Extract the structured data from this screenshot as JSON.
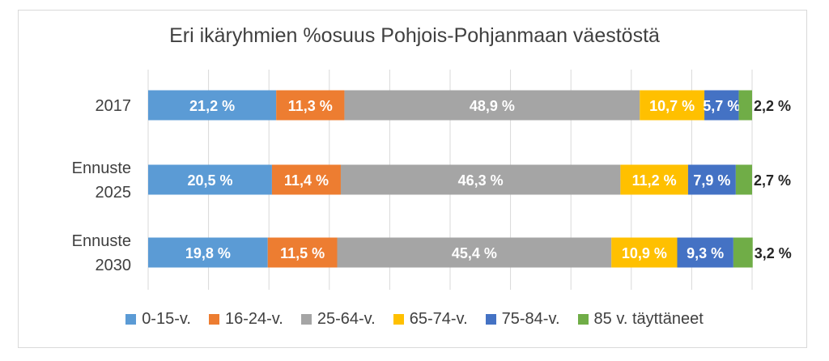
{
  "chart_data": {
    "type": "bar",
    "orientation": "horizontal",
    "stacked": true,
    "title": "Eri ikäryhmien %osuus Pohjois-Pohjanmaan väestöstä",
    "categories": [
      [
        "2017"
      ],
      [
        "Ennuste",
        "2025"
      ],
      [
        "Ennuste",
        "2030"
      ]
    ],
    "xlim": [
      0,
      100
    ],
    "grid": true,
    "legend_position": "bottom",
    "series": [
      {
        "name": "0-15-v.",
        "color": "#5b9bd5",
        "values": [
          21.2,
          20.5,
          19.8
        ],
        "labels": [
          "21,2 %",
          "20,5 %",
          "19,8 %"
        ]
      },
      {
        "name": "16-24-v.",
        "color": "#ed7d31",
        "values": [
          11.3,
          11.4,
          11.5
        ],
        "labels": [
          "11,3 %",
          "11,4 %",
          "11,5 %"
        ]
      },
      {
        "name": "25-64-v.",
        "color": "#a5a5a5",
        "values": [
          48.9,
          46.3,
          45.4
        ],
        "labels": [
          "48,9 %",
          "46,3 %",
          "45,4 %"
        ]
      },
      {
        "name": "65-74-v.",
        "color": "#ffc000",
        "values": [
          10.7,
          11.2,
          10.9
        ],
        "labels": [
          "10,7 %",
          "11,2 %",
          "10,9 %"
        ]
      },
      {
        "name": "75-84-v.",
        "color": "#4472c4",
        "values": [
          5.7,
          7.9,
          9.3
        ],
        "labels": [
          "5,7 %",
          "7,9 %",
          "9,3 %"
        ]
      },
      {
        "name": "85 v. täyttäneet",
        "color": "#70ad47",
        "values": [
          2.2,
          2.7,
          3.2
        ],
        "labels": [
          "2,2 %",
          "2,7 %",
          "3,2 %"
        ]
      }
    ]
  }
}
